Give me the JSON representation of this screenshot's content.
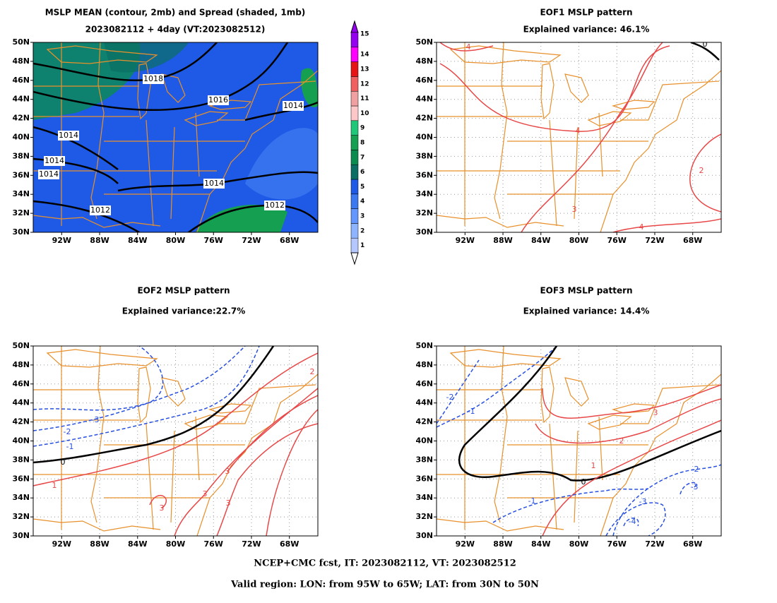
{
  "panels": [
    {
      "title": "MSLP MEAN (contour, 2mb) and Spread (shaded, 1mb)",
      "subtitle": "2023082112 + 4day (VT:2023082512)",
      "contour_labels": [
        1018,
        1016,
        1014,
        1014,
        1014,
        1014,
        1014,
        1012,
        1012
      ]
    },
    {
      "title": "EOF1 MSLP pattern",
      "subtitle": "Explained variance: 46.1%",
      "contour_labels": [
        0,
        4,
        4,
        2,
        3,
        4
      ]
    },
    {
      "title": "EOF2 MSLP pattern",
      "subtitle": "Explained variance:22.7%",
      "contour_labels": [
        -3,
        -2,
        -1,
        0,
        1,
        3,
        3,
        3,
        3,
        2
      ]
    },
    {
      "title": "EOF3 MSLP pattern",
      "subtitle": "Explained variance: 14.4%",
      "contour_labels": [
        -2,
        -1,
        0,
        1,
        2,
        3,
        -2,
        -3,
        -3,
        -4,
        -1
      ]
    }
  ],
  "lon_labels": [
    "92W",
    "88W",
    "84W",
    "80W",
    "76W",
    "72W",
    "68W"
  ],
  "lat_labels": [
    "30N",
    "32N",
    "34N",
    "36N",
    "38N",
    "40N",
    "42N",
    "44N",
    "46N",
    "48N",
    "50N"
  ],
  "colorbar": {
    "labels": [
      1,
      2,
      3,
      4,
      5,
      6,
      7,
      8,
      9,
      10,
      11,
      12,
      13,
      14,
      15
    ],
    "colors": [
      "#b4c8ff",
      "#8cb4ff",
      "#6496ff",
      "#3c78f0",
      "#1e5ae6",
      "#0a6e64",
      "#0a8c50",
      "#14a050",
      "#1ec878",
      "#ffc8c8",
      "#f0a0a0",
      "#f06060",
      "#e61414",
      "#ff00ff",
      "#9600f0"
    ]
  },
  "footer": [
    "NCEP+CMC fcst, IT: 2023082112, VT: 2023082512",
    "Valid region: LON: from 95W to 65W; LAT: from 30N to 50N"
  ]
}
